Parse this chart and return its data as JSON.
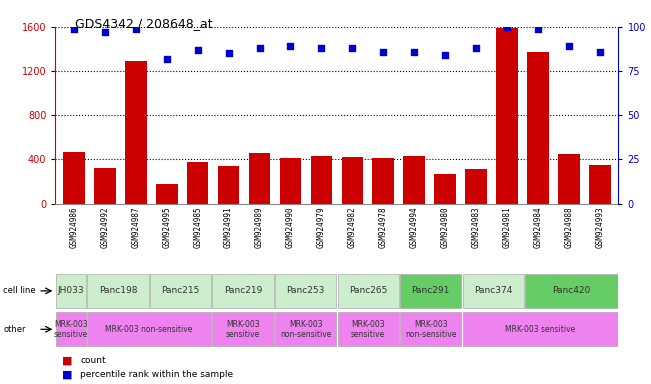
{
  "title": "GDS4342 / 208648_at",
  "samples": [
    "GSM924986",
    "GSM924992",
    "GSM924987",
    "GSM924995",
    "GSM924985",
    "GSM924991",
    "GSM924989",
    "GSM924990",
    "GSM924979",
    "GSM924982",
    "GSM924978",
    "GSM924994",
    "GSM924980",
    "GSM924983",
    "GSM924981",
    "GSM924984",
    "GSM924988",
    "GSM924993"
  ],
  "counts": [
    470,
    320,
    1290,
    175,
    380,
    340,
    460,
    415,
    430,
    420,
    415,
    430,
    270,
    310,
    1590,
    1370,
    450,
    345
  ],
  "percentiles": [
    99,
    97,
    99,
    82,
    87,
    85,
    88,
    89,
    88,
    88,
    86,
    86,
    84,
    88,
    100,
    99,
    89,
    86
  ],
  "ylim_left": [
    0,
    1600
  ],
  "ylim_right": [
    0,
    100
  ],
  "yticks_left": [
    0,
    400,
    800,
    1200,
    1600
  ],
  "yticks_right": [
    0,
    25,
    50,
    75,
    100
  ],
  "bar_color": "#cc0000",
  "dot_color": "#0000cc",
  "grid_color": "#000000",
  "xtick_bg": "#d8d8d8",
  "cell_line_row": {
    "label": "cell line",
    "groups": [
      {
        "name": "JH033",
        "start": 0,
        "end": 1,
        "color": "#cceecc"
      },
      {
        "name": "Panc198",
        "start": 1,
        "end": 3,
        "color": "#cceecc"
      },
      {
        "name": "Panc215",
        "start": 3,
        "end": 5,
        "color": "#cceecc"
      },
      {
        "name": "Panc219",
        "start": 5,
        "end": 7,
        "color": "#cceecc"
      },
      {
        "name": "Panc253",
        "start": 7,
        "end": 9,
        "color": "#cceecc"
      },
      {
        "name": "Panc265",
        "start": 9,
        "end": 11,
        "color": "#cceecc"
      },
      {
        "name": "Panc291",
        "start": 11,
        "end": 13,
        "color": "#66cc66"
      },
      {
        "name": "Panc374",
        "start": 13,
        "end": 15,
        "color": "#cceecc"
      },
      {
        "name": "Panc420",
        "start": 15,
        "end": 18,
        "color": "#66cc66"
      }
    ]
  },
  "other_row": {
    "label": "other",
    "groups": [
      {
        "name": "MRK-003\nsensitive",
        "start": 0,
        "end": 1,
        "color": "#ee82ee"
      },
      {
        "name": "MRK-003 non-sensitive",
        "start": 1,
        "end": 5,
        "color": "#ee82ee"
      },
      {
        "name": "MRK-003\nsensitive",
        "start": 5,
        "end": 7,
        "color": "#ee82ee"
      },
      {
        "name": "MRK-003\nnon-sensitive",
        "start": 7,
        "end": 9,
        "color": "#ee82ee"
      },
      {
        "name": "MRK-003\nsensitive",
        "start": 9,
        "end": 11,
        "color": "#ee82ee"
      },
      {
        "name": "MRK-003\nnon-sensitive",
        "start": 11,
        "end": 13,
        "color": "#ee82ee"
      },
      {
        "name": "MRK-003 sensitive",
        "start": 13,
        "end": 18,
        "color": "#ee82ee"
      }
    ]
  },
  "legend_count_color": "#cc0000",
  "legend_pct_color": "#0000cc",
  "bg_color": "#ffffff",
  "n_samples": 18
}
